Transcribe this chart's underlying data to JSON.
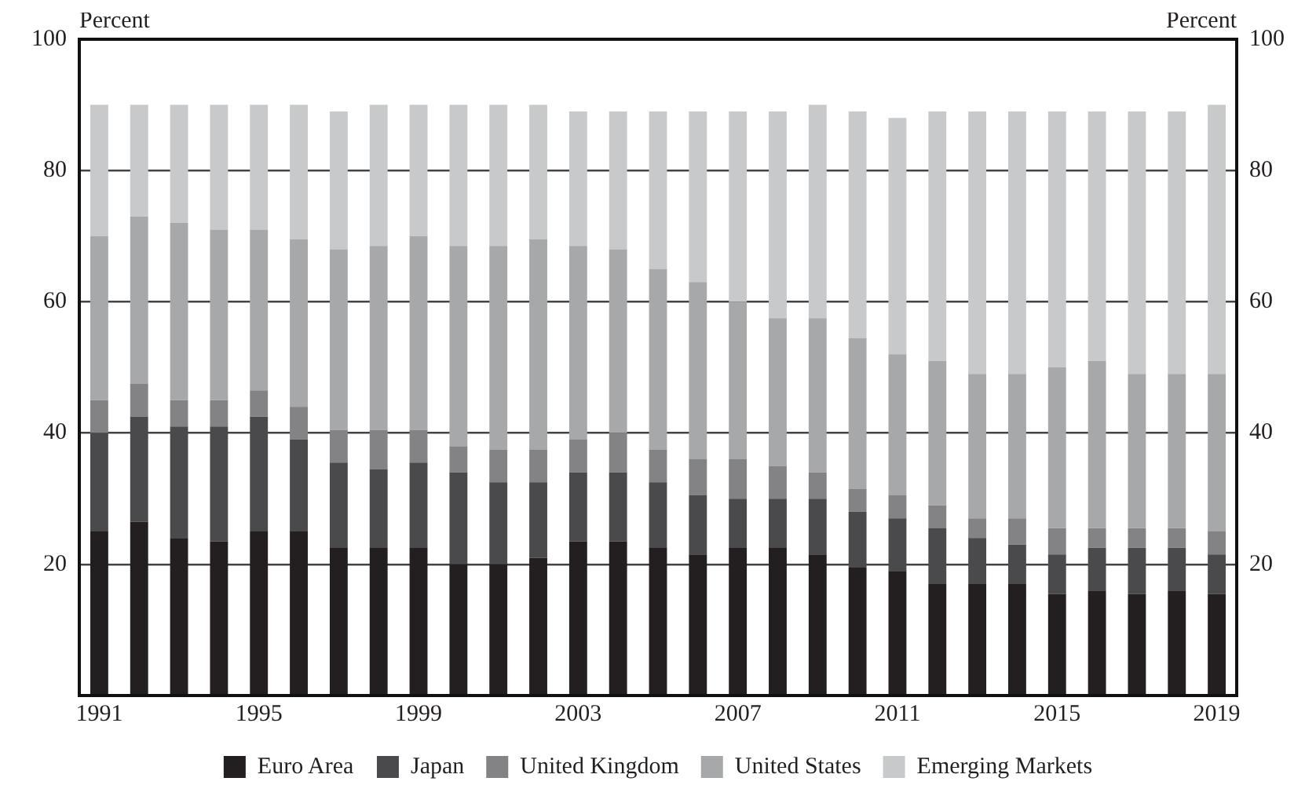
{
  "chart_data": {
    "type": "bar",
    "stacked": true,
    "ylabel": "Percent",
    "y2label": "Percent",
    "categories": [
      "1991",
      null,
      null,
      null,
      "1995",
      null,
      null,
      null,
      "1999",
      null,
      null,
      null,
      "2003",
      null,
      null,
      null,
      "2007",
      null,
      null,
      null,
      "2011",
      null,
      null,
      null,
      "2015",
      null,
      null,
      null,
      "2019"
    ],
    "series": [
      {
        "name": "Euro Area",
        "color": "#231f20",
        "values": [
          25,
          26.5,
          24,
          23.5,
          25,
          25,
          22.5,
          22.5,
          22.5,
          20,
          20,
          21,
          23.5,
          23.5,
          22.5,
          21.5,
          22.5,
          22.5,
          21.5,
          19.5,
          19,
          17,
          17,
          17,
          15.5,
          16,
          15.5,
          16,
          15.5
        ]
      },
      {
        "name": "Japan",
        "color": "#4a4a4c",
        "values": [
          15,
          16,
          17,
          17.5,
          17.5,
          14,
          13,
          12,
          13,
          14,
          12.5,
          11.5,
          10.5,
          10.5,
          10,
          9,
          7.5,
          7.5,
          8.5,
          8.5,
          8,
          8.5,
          7,
          6,
          6,
          6.5,
          7,
          6.5,
          6
        ]
      },
      {
        "name": "United Kingdom",
        "color": "#838385",
        "values": [
          5,
          5,
          4,
          4,
          4,
          5,
          5,
          6,
          5,
          4,
          5,
          5,
          5,
          6,
          5,
          5.5,
          6,
          5,
          4,
          3.5,
          3.5,
          3.5,
          3,
          4,
          4,
          3,
          3,
          3,
          3.5
        ]
      },
      {
        "name": "United States",
        "color": "#a7a8aa",
        "values": [
          25,
          25.5,
          27,
          26,
          24.5,
          25.5,
          27.5,
          28,
          29.5,
          30.5,
          31,
          32,
          29.5,
          28,
          27.5,
          27,
          24,
          22.5,
          23.5,
          23,
          21.5,
          22,
          22,
          22,
          24.5,
          25.5,
          23.5,
          23.5,
          24
        ]
      },
      {
        "name": "Emerging Markets",
        "color": "#c8c9ca",
        "values": [
          20,
          17,
          18,
          19,
          19,
          20.5,
          21,
          21.5,
          20,
          21.5,
          21.5,
          20.5,
          20.5,
          21,
          24,
          26,
          29,
          31.5,
          32.5,
          34.5,
          36,
          38,
          40,
          40,
          39,
          38,
          40,
          40,
          41
        ]
      }
    ],
    "ylim": [
      0,
      100
    ],
    "yticks": [
      20,
      40,
      60,
      80,
      100
    ],
    "y2lim": [
      0,
      100
    ],
    "y2ticks": [
      20,
      40,
      60,
      80,
      100
    ],
    "grid": "y",
    "legend": "bottom"
  }
}
